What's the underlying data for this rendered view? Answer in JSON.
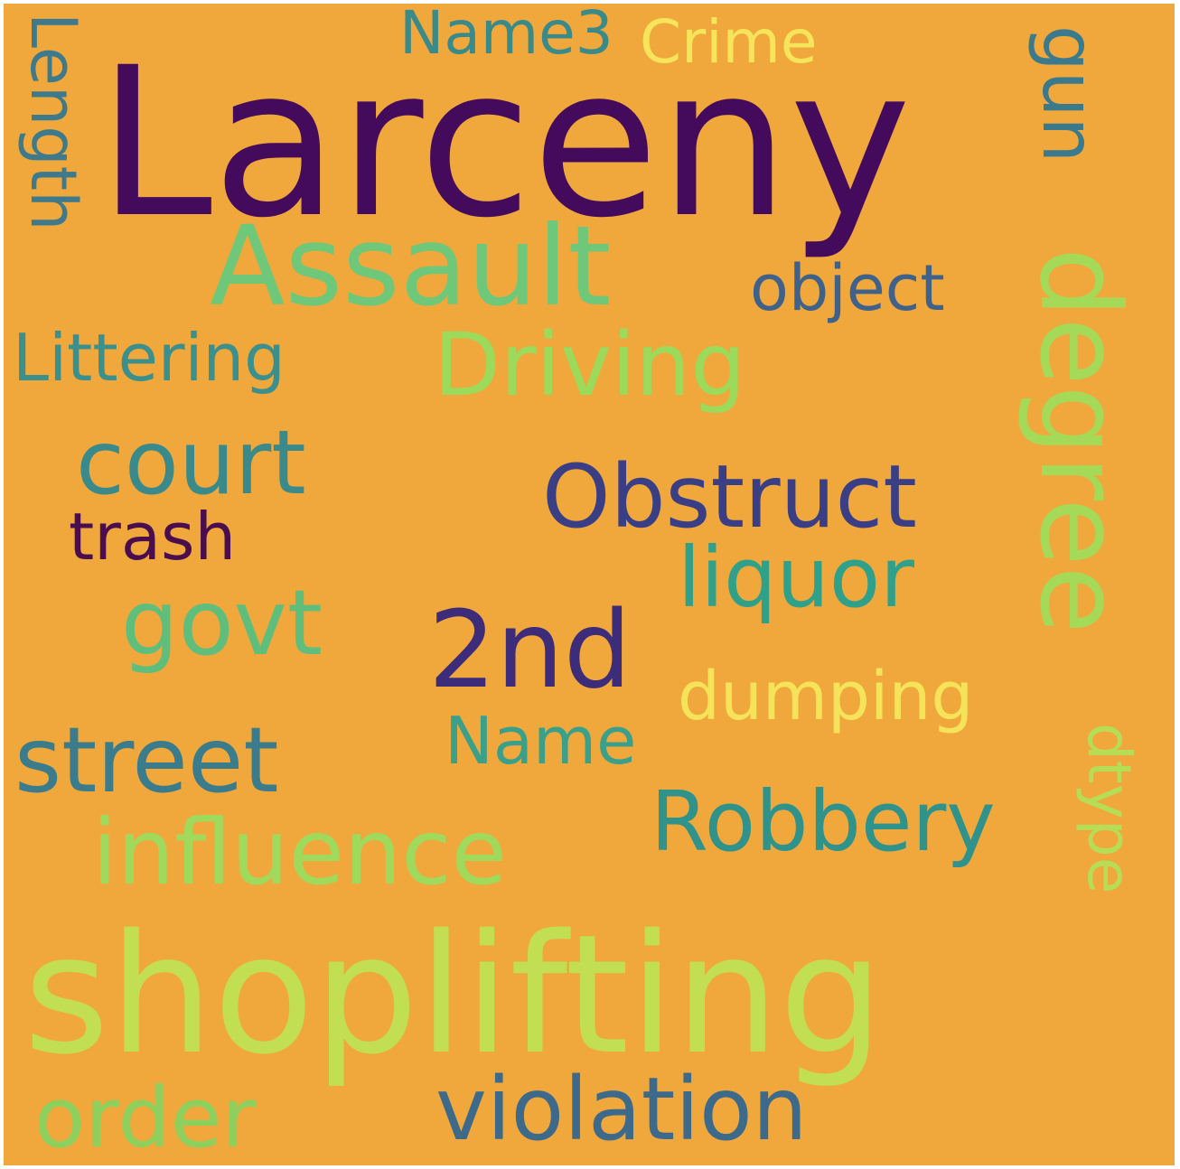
{
  "background_color": "#f0a83c",
  "words": [
    {
      "key": "larceny",
      "text": "Larceny",
      "color": "#440a5c"
    },
    {
      "key": "assault",
      "text": "Assault",
      "color": "#6fc77a"
    },
    {
      "key": "shoplift",
      "text": "shoplifting",
      "color": "#c2de52"
    },
    {
      "key": "driving",
      "text": "Driving",
      "color": "#9bda5a"
    },
    {
      "key": "littering",
      "text": "Littering",
      "color": "#3b8f8c"
    },
    {
      "key": "object",
      "text": "object",
      "color": "#40628a"
    },
    {
      "key": "court",
      "text": "court",
      "color": "#3a8a8c"
    },
    {
      "key": "obstruct",
      "text": "Obstruct",
      "color": "#3a3f85"
    },
    {
      "key": "trash",
      "text": "trash",
      "color": "#4a0d4e"
    },
    {
      "key": "liquor",
      "text": "liquor",
      "color": "#2fa08a"
    },
    {
      "key": "govt",
      "text": "govt",
      "color": "#5fbe7c"
    },
    {
      "key": "2nd",
      "text": "2nd",
      "color": "#3d2c7a"
    },
    {
      "key": "dumping",
      "text": "dumping",
      "color": "#f5e45a"
    },
    {
      "key": "name",
      "text": "Name",
      "color": "#3aa08a"
    },
    {
      "key": "street",
      "text": "street",
      "color": "#3b7c8c"
    },
    {
      "key": "robbery",
      "text": "Robbery",
      "color": "#2f938c"
    },
    {
      "key": "influence",
      "text": "influence",
      "color": "#9fda5c"
    },
    {
      "key": "order",
      "text": "order",
      "color": "#8ed05e"
    },
    {
      "key": "violation",
      "text": "violation",
      "color": "#3d6a8b"
    },
    {
      "key": "name3",
      "text": "Name3",
      "color": "#3a8a8a"
    },
    {
      "key": "crime",
      "text": "Crime",
      "color": "#f6e45a"
    },
    {
      "key": "length",
      "text": "Length",
      "color": "#3e7a8c"
    },
    {
      "key": "gun",
      "text": "gun",
      "color": "#3b7a8c"
    },
    {
      "key": "degree",
      "text": "degree",
      "color": "#a5da58"
    },
    {
      "key": "dtype",
      "text": "dtype",
      "color": "#b6dd56"
    }
  ]
}
